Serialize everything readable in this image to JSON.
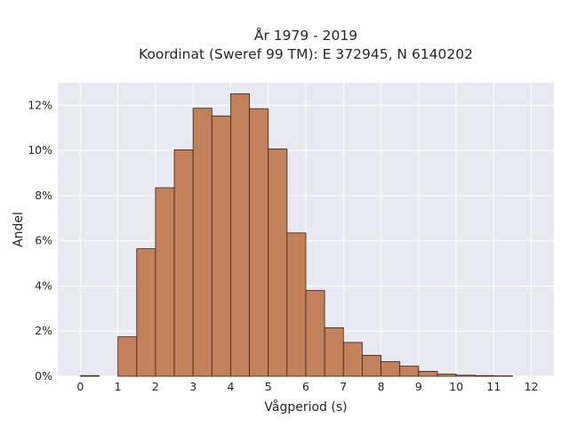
{
  "chart_data": {
    "type": "bar",
    "title_lines": [
      "År 1979 - 2019",
      "Koordinat (Sweref 99 TM): E 372945, N 6140202"
    ],
    "xlabel": "Vågperiod (s)",
    "ylabel": "Andel",
    "xlim": [
      -0.6,
      12.6
    ],
    "ylim": [
      0,
      0.13
    ],
    "xticks": [
      0,
      1,
      2,
      3,
      4,
      5,
      6,
      7,
      8,
      9,
      10,
      11,
      12
    ],
    "yticks": [
      0,
      0.02,
      0.04,
      0.06,
      0.08,
      0.1,
      0.12
    ],
    "ytick_labels": [
      "0%",
      "2%",
      "4%",
      "6%",
      "8%",
      "10%",
      "12%"
    ],
    "bin_width": 0.5,
    "bins": [
      {
        "start": 0.0,
        "value": 0.0003
      },
      {
        "start": 0.5,
        "value": 0.0
      },
      {
        "start": 1.0,
        "value": 0.0175
      },
      {
        "start": 1.5,
        "value": 0.0565
      },
      {
        "start": 2.0,
        "value": 0.0835
      },
      {
        "start": 2.5,
        "value": 0.1003
      },
      {
        "start": 3.0,
        "value": 0.1187
      },
      {
        "start": 3.5,
        "value": 0.1153
      },
      {
        "start": 4.0,
        "value": 0.1251
      },
      {
        "start": 4.5,
        "value": 0.1185
      },
      {
        "start": 5.0,
        "value": 0.1007
      },
      {
        "start": 5.5,
        "value": 0.0635
      },
      {
        "start": 6.0,
        "value": 0.038
      },
      {
        "start": 6.5,
        "value": 0.0215
      },
      {
        "start": 7.0,
        "value": 0.015
      },
      {
        "start": 7.5,
        "value": 0.0093
      },
      {
        "start": 8.0,
        "value": 0.0065
      },
      {
        "start": 8.5,
        "value": 0.0045
      },
      {
        "start": 9.0,
        "value": 0.0022
      },
      {
        "start": 9.5,
        "value": 0.001
      },
      {
        "start": 10.0,
        "value": 0.0005
      },
      {
        "start": 10.5,
        "value": 0.0003
      },
      {
        "start": 11.0,
        "value": 0.0002
      }
    ],
    "grid": true,
    "colors": {
      "bar_fill": "#c07a52",
      "bar_edge": "#3a2418",
      "plot_background": "#e9e9f1",
      "grid": "#ffffff"
    }
  }
}
